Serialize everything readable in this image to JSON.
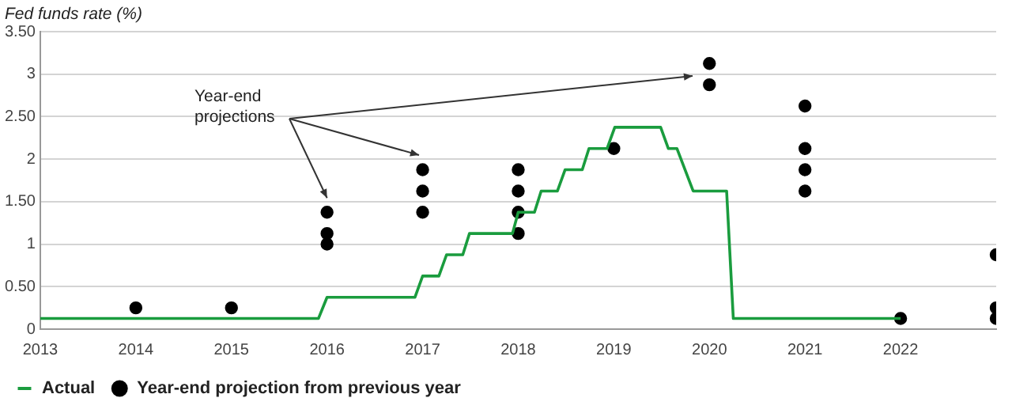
{
  "chart_data": {
    "type": "line",
    "ylabel": "Fed funds rate (%)",
    "xlim": [
      2013,
      2023
    ],
    "xticks": [
      2013,
      2014,
      2015,
      2016,
      2017,
      2018,
      2019,
      2020,
      2021,
      2022
    ],
    "ylim": [
      0,
      3.5
    ],
    "yticks": [
      0,
      {
        "value": 0.5,
        "label": "0.50"
      },
      1,
      {
        "value": 1.5,
        "label": "1.50"
      },
      2,
      {
        "value": 2.5,
        "label": "2.50"
      },
      3,
      {
        "value": 3.5,
        "label": "3.50"
      }
    ],
    "grid": "y",
    "legend": "bottom",
    "annotations": [
      {
        "text": "Year-end projections",
        "x": 2016,
        "y": 1.375
      }
    ],
    "series": [
      {
        "name": "Actual",
        "color": "#1a9c3e",
        "marker": "none",
        "x": [
          2013,
          2015.91,
          2016,
          2016.92,
          2017,
          2017.17,
          2017.25,
          2017.42,
          2017.49,
          2017.94,
          2018,
          2018.17,
          2018.24,
          2018.41,
          2018.49,
          2018.67,
          2018.74,
          2018.93,
          2019.01,
          2019.49,
          2019.57,
          2019.66,
          2019.83,
          2020.18,
          2020.25,
          2022
        ],
        "values": [
          0.125,
          0.125,
          0.375,
          0.375,
          0.625,
          0.625,
          0.875,
          0.875,
          1.125,
          1.125,
          1.375,
          1.375,
          1.625,
          1.625,
          1.875,
          1.875,
          2.125,
          2.125,
          2.375,
          2.375,
          2.125,
          2.125,
          1.625,
          1.625,
          0.125,
          0.125
        ]
      },
      {
        "name": "Year-end projection from previous year",
        "type": "scatter",
        "color": "#000000",
        "marker": "circle",
        "x": [
          2014,
          2015,
          2016,
          2016,
          2016,
          2017,
          2017,
          2017,
          2018,
          2018,
          2018,
          2018,
          2019,
          2020,
          2020,
          2021,
          2021,
          2021,
          2021,
          2022,
          2023,
          2023,
          2023
        ],
        "values": [
          0.25,
          0.25,
          1.375,
          1.125,
          1,
          1.875,
          1.625,
          1.375,
          1.875,
          1.625,
          1.375,
          1.125,
          2.125,
          3.125,
          2.875,
          2.625,
          2.125,
          1.875,
          1.625,
          0.125,
          0.875,
          0.25,
          0.125
        ]
      }
    ]
  }
}
